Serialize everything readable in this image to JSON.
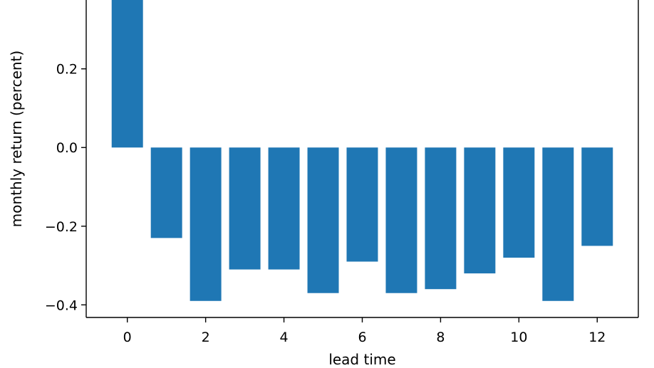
{
  "chart_data": {
    "type": "bar",
    "title": "",
    "xlabel": "lead time",
    "ylabel": "monthly return (percent)",
    "categories": [
      0,
      1,
      2,
      3,
      4,
      5,
      6,
      7,
      8,
      9,
      10,
      11,
      12
    ],
    "values": [
      0.4,
      -0.23,
      -0.39,
      -0.31,
      -0.31,
      -0.37,
      -0.29,
      -0.37,
      -0.36,
      -0.32,
      -0.28,
      -0.39,
      -0.25
    ],
    "xticks": [
      0,
      2,
      4,
      6,
      8,
      10,
      12
    ],
    "xtick_labels": [
      "0",
      "2",
      "4",
      "6",
      "8",
      "10",
      "12"
    ],
    "yticks": [
      -0.4,
      -0.2,
      0.0,
      0.2
    ],
    "ytick_labels": [
      "−0.4",
      "−0.2",
      "0.0",
      "0.2"
    ],
    "xlim": [
      -1.05,
      13.05
    ],
    "ylim": [
      -0.432,
      0.375
    ],
    "grid": false,
    "legend": "none",
    "bar_color": "#1f77b4",
    "axis_color": "#000000",
    "background": "#ffffff"
  }
}
